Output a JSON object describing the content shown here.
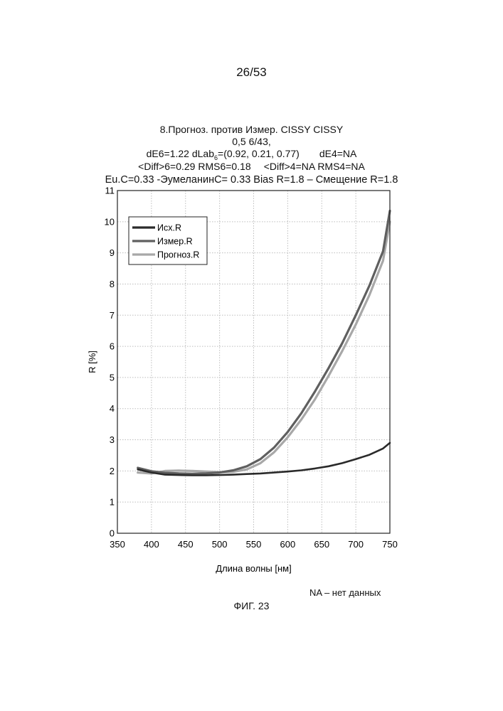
{
  "page": {
    "number": "26/53",
    "footnote": "NA – нет данных",
    "figure_label": "ФИГ. 23"
  },
  "chart_title": {
    "line1": "8.Прогноз. против Измер. CISSY CISSY",
    "line2": "0,5 6/43,",
    "line3a_pre": "dE6=1.22 dLab",
    "line3a_sub": "6",
    "line3a_post": "=(0.92, 0.21, 0.77)",
    "line3b": "dE4=NA",
    "line4a": "<Diff>6=0.29 RMS6=0.18",
    "line4b": "<Diff>4=NA RMS4=NA",
    "line5": "Eu.C=0.33 -ЭумеланинC= 0.33 Bias R=1.8 – Смещение R=1.8"
  },
  "colors": {
    "ish": "#2a2a2a",
    "izmer": "#5f5f5f",
    "prognoz": "#a8a8a8",
    "grid": "#bdbdbd",
    "axis": "#222222"
  },
  "chart_data": {
    "type": "line",
    "xlabel": "Длина волны [нм]",
    "ylabel": "R [%]",
    "xlim": [
      350,
      750
    ],
    "ylim": [
      0,
      11
    ],
    "xticks": [
      "350",
      "400",
      "450",
      "500",
      "550",
      "600",
      "650",
      "700",
      "750"
    ],
    "yticks": [
      "0",
      "1",
      "2",
      "3",
      "4",
      "5",
      "6",
      "7",
      "8",
      "9",
      "10",
      "11"
    ],
    "grid": true,
    "legend_position": "top-left",
    "x": [
      380,
      400,
      420,
      440,
      460,
      480,
      500,
      520,
      540,
      560,
      580,
      600,
      620,
      640,
      660,
      680,
      700,
      720,
      740,
      750
    ],
    "series": [
      {
        "name": "Исх.R",
        "values": [
          2.05,
          1.95,
          1.88,
          1.87,
          1.86,
          1.86,
          1.87,
          1.88,
          1.9,
          1.92,
          1.95,
          1.98,
          2.02,
          2.08,
          2.15,
          2.25,
          2.38,
          2.52,
          2.72,
          2.9
        ]
      },
      {
        "name": "Измер.R",
        "values": [
          2.1,
          1.99,
          1.94,
          1.92,
          1.91,
          1.92,
          1.95,
          2.02,
          2.15,
          2.38,
          2.75,
          3.25,
          3.85,
          4.55,
          5.3,
          6.1,
          7.0,
          7.95,
          9.05,
          10.35
        ]
      },
      {
        "name": "Прогноз.R",
        "values": [
          1.95,
          1.92,
          2.0,
          2.01,
          2.0,
          1.98,
          1.96,
          1.97,
          2.05,
          2.25,
          2.6,
          3.08,
          3.65,
          4.3,
          5.05,
          5.85,
          6.7,
          7.65,
          8.75,
          10.0
        ]
      }
    ]
  }
}
